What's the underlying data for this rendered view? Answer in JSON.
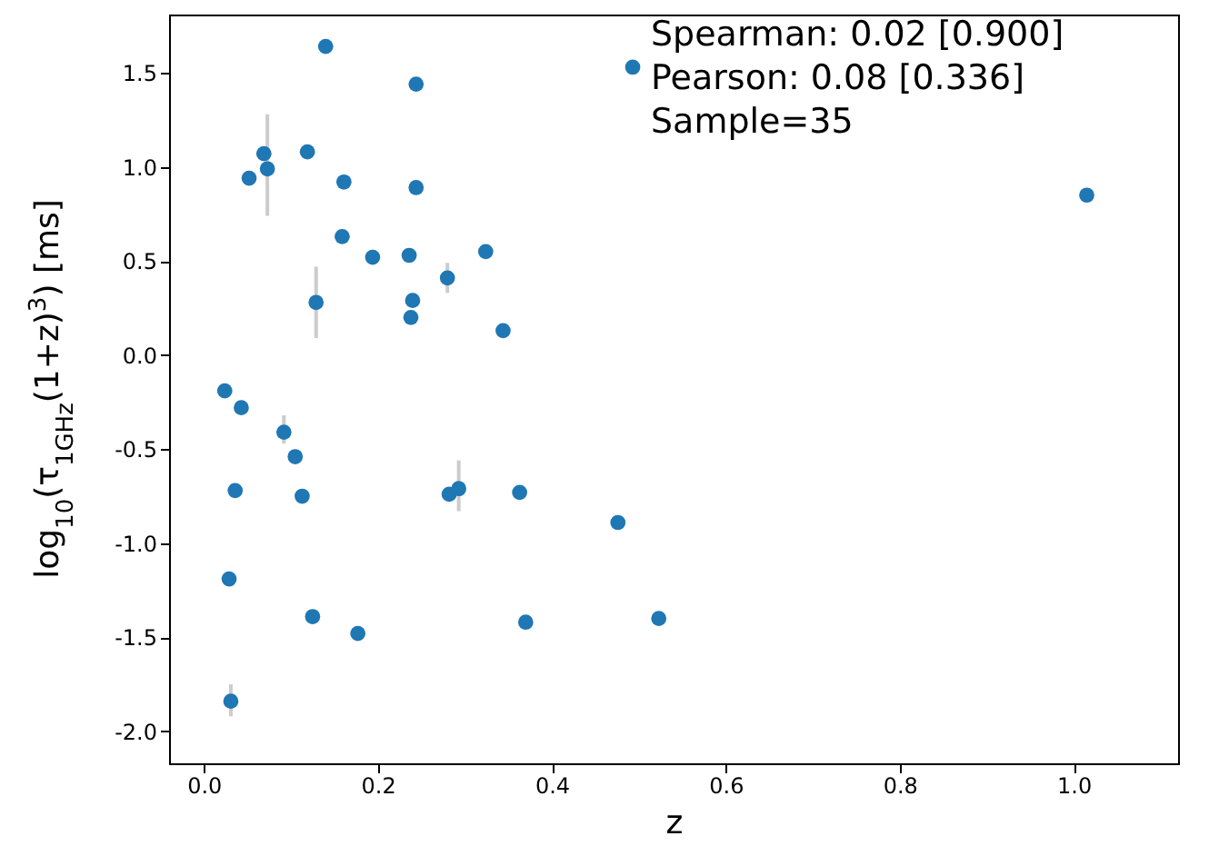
{
  "chart_data": {
    "type": "scatter",
    "xlabel": "z",
    "ylabel": "log$_{10}$(τ$_{1GHz}$(1+z)$^{3}$) [ms]",
    "annotations": [
      "Spearman: 0.02 [0.900]",
      "Pearson: 0.08 [0.336]",
      "Sample=35"
    ],
    "xlim": [
      -0.04,
      1.12
    ],
    "ylim": [
      -2.17,
      1.81
    ],
    "xticks": [
      {
        "value": 0,
        "label": "0.0"
      },
      {
        "value": 0.2,
        "label": "0.2"
      },
      {
        "value": 0.4,
        "label": "0.4"
      },
      {
        "value": 0.6,
        "label": "0.6"
      },
      {
        "value": 0.8,
        "label": "0.8"
      },
      {
        "value": 1,
        "label": "1.0"
      }
    ],
    "yticks": [
      {
        "value": -2,
        "label": "-2.0"
      },
      {
        "value": -1.5,
        "label": "-1.5"
      },
      {
        "value": -1,
        "label": "-1.0"
      },
      {
        "value": -0.5,
        "label": "-0.5"
      },
      {
        "value": 0,
        "label": "0.0"
      },
      {
        "value": 0.5,
        "label": "0.5"
      },
      {
        "value": 1,
        "label": "1.0"
      },
      {
        "value": 1.5,
        "label": "1.5"
      }
    ],
    "grid": false,
    "marker": "circle",
    "series": [
      {
        "color": "#1f77b4",
        "x": [
          0.14,
          0.244,
          0.493,
          0.069,
          0.073,
          0.052,
          0.119,
          0.161,
          0.244,
          1.015,
          0.159,
          0.194,
          0.236,
          0.324,
          0.28,
          0.129,
          0.24,
          0.238,
          0.344,
          0.024,
          0.043,
          0.092,
          0.105,
          0.036,
          0.113,
          0.282,
          0.293,
          0.363,
          0.476,
          0.029,
          0.125,
          0.177,
          0.37,
          0.523,
          0.031
        ],
        "values": [
          1.64,
          1.44,
          1.53,
          1.07,
          0.99,
          0.94,
          1.08,
          0.92,
          0.89,
          0.85,
          0.63,
          0.52,
          0.53,
          0.55,
          0.41,
          0.28,
          0.29,
          0.2,
          0.13,
          -0.19,
          -0.28,
          -0.41,
          -0.54,
          -0.72,
          -0.75,
          -0.74,
          -0.71,
          -0.73,
          -0.89,
          -1.19,
          -1.39,
          -1.48,
          -1.42,
          -1.4,
          -1.84
        ],
        "errors": [
          null,
          null,
          null,
          null,
          [
            0.74,
            1.28
          ],
          null,
          null,
          null,
          null,
          null,
          null,
          null,
          null,
          null,
          [
            0.33,
            0.49
          ],
          [
            0.09,
            0.47
          ],
          null,
          null,
          null,
          null,
          null,
          [
            -0.47,
            -0.32
          ],
          null,
          null,
          null,
          null,
          [
            -0.83,
            -0.56
          ],
          null,
          null,
          null,
          null,
          null,
          null,
          null,
          [
            -1.92,
            -1.75
          ]
        ]
      }
    ]
  }
}
